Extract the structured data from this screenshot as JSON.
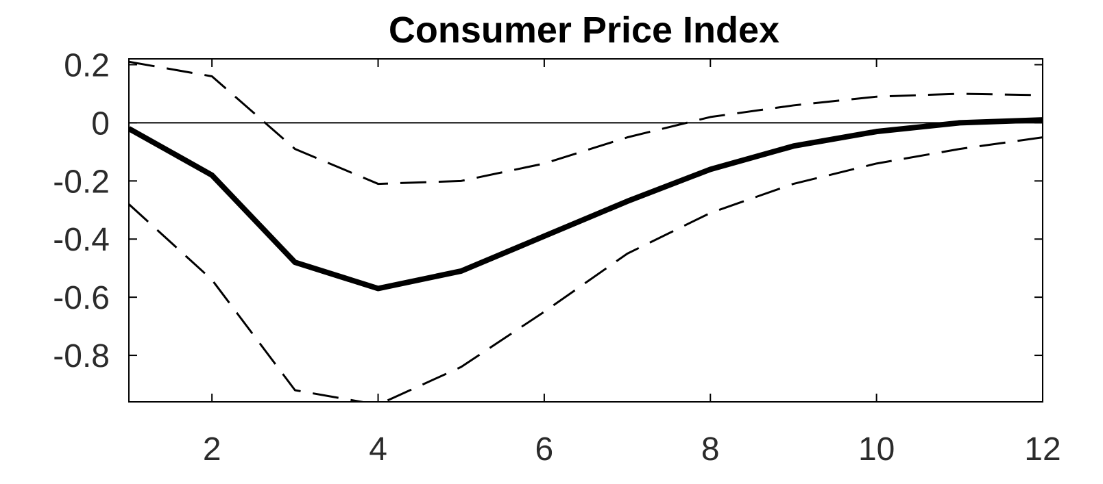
{
  "chart_data": {
    "type": "line",
    "title": "Consumer Price Index",
    "xlabel": "",
    "ylabel": "",
    "xlim": [
      1,
      12
    ],
    "ylim": [
      -0.96,
      0.22
    ],
    "x": [
      1,
      2,
      3,
      4,
      5,
      6,
      7,
      8,
      9,
      10,
      11,
      12
    ],
    "xticks": [
      2,
      4,
      6,
      8,
      10,
      12
    ],
    "xtick_labels": [
      "2",
      "4",
      "6",
      "8",
      "10",
      "12"
    ],
    "yticks": [
      0.2,
      0,
      -0.2,
      -0.4,
      -0.6,
      -0.8
    ],
    "ytick_labels": [
      "0.2",
      "0",
      "-0.2",
      "-0.4",
      "-0.6",
      "-0.8"
    ],
    "zero_line": true,
    "grid": false,
    "series": [
      {
        "style": "solid",
        "values": [
          -0.02,
          -0.18,
          -0.48,
          -0.57,
          -0.51,
          -0.39,
          -0.27,
          -0.16,
          -0.08,
          -0.03,
          0.0,
          0.01
        ]
      },
      {
        "style": "dashed",
        "values": [
          0.21,
          0.16,
          -0.09,
          -0.21,
          -0.2,
          -0.14,
          -0.05,
          0.02,
          0.06,
          0.09,
          0.1,
          0.095
        ]
      },
      {
        "style": "dashed",
        "values": [
          -0.28,
          -0.54,
          -0.92,
          -0.97,
          -0.84,
          -0.65,
          -0.45,
          -0.31,
          -0.21,
          -0.14,
          -0.09,
          -0.05
        ]
      }
    ],
    "colors": {
      "line": "#000000",
      "axis": "#000000",
      "text": "#2b2b2b"
    }
  }
}
